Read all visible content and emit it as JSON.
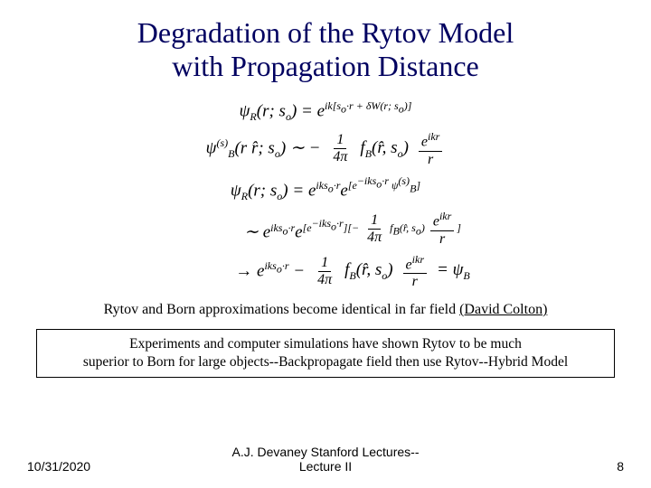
{
  "colors": {
    "title": "#000060",
    "text": "#000000",
    "background": "#ffffff",
    "box_border": "#000000"
  },
  "fonts": {
    "title_size_pt": 32,
    "body_size_pt": 19,
    "caption_size_pt": 16,
    "box_size_pt": 15.5,
    "footer_size_pt": 14,
    "title_family": "Times New Roman",
    "footer_family": "Arial"
  },
  "title": {
    "line1": "Degradation of the Rytov Model",
    "line2": "with Propagation Distance"
  },
  "equations": {
    "eq1": {
      "lhs": "ψ",
      "lhs_sub": "R",
      "lhs_args": "(r; s",
      "lhs_args_sub": "o",
      "lhs_args_close": ") = ",
      "rhs_base": "e",
      "rhs_exp": "ik[s",
      "rhs_exp_sub": "o",
      "rhs_exp2": "·r + δW(r; s",
      "rhs_exp2_sub": "o",
      "rhs_exp_close": ")]"
    },
    "eq2": {
      "lhs": "ψ",
      "lhs_sup": "(s)",
      "lhs_sub": "B",
      "lhs_args": "(r r̂; s",
      "lhs_args_sub": "o",
      "lhs_args_close": ") ∼ −",
      "frac1_num": "1",
      "frac1_den": "4π",
      "mid1": " f",
      "mid1_sub": "B",
      "mid1_args": "(r̂, s",
      "mid1_args_sub": "o",
      "mid1_close": ")",
      "frac2_num_base": "e",
      "frac2_num_exp": "ikr",
      "frac2_den": "r"
    },
    "eq3": {
      "lhs": "ψ",
      "lhs_sub": "R",
      "lhs_args": "(r; s",
      "lhs_args_sub": "o",
      "lhs_args_close": ") = ",
      "rhs1_base": "e",
      "rhs1_exp1": "iks",
      "rhs1_exp1_sub": "o",
      "rhs1_exp2": "·r",
      "rhs1_b_base": "e",
      "rhs1_b_exp_open": "[e",
      "rhs1_b_exp_inner": "−iks",
      "rhs1_b_exp_inner_sub": "o",
      "rhs1_b_exp_inner2": "·r",
      "rhs1_b_exp_close": " ψ",
      "rhs1_b_exp_close_sup": "(s)",
      "rhs1_b_exp_close_sub": "B",
      "rhs1_b_exp_end": "]"
    },
    "eq4": {
      "rel": "∼ ",
      "a_base": "e",
      "a_exp1": "iks",
      "a_exp1_sub": "o",
      "a_exp2": "·r",
      "b_base": "e",
      "b_exp_open": "[e",
      "b_exp_inner": "−iks",
      "b_exp_inner_sub": "o",
      "b_exp_inner2": "·r",
      "b_exp_close": "][−",
      "frac_num": "1",
      "frac_den": "4π",
      "tail": " f",
      "tail_sub": "B",
      "tail_args": "(r̂, s",
      "tail_args_sub": "o",
      "tail_close": ")",
      "frac2_num_base": "e",
      "frac2_num_exp": "ikr",
      "frac2_den": "r",
      "end": "]"
    },
    "eq5": {
      "rel": "→ ",
      "a_base": "e",
      "a_exp1": "iks",
      "a_exp1_sub": "o",
      "a_exp2": "·r",
      "minus": " − ",
      "frac_num": "1",
      "frac_den": "4π",
      "tail": " f",
      "tail_sub": "B",
      "tail_args": "(r̂, s",
      "tail_args_sub": "o",
      "tail_close": ")",
      "frac2_num_base": "e",
      "frac2_num_exp": "ikr",
      "frac2_den": "r",
      "eq_rhs": " = ψ",
      "eq_rhs_sub": "B"
    }
  },
  "caption": {
    "text": "Rytov and Born approximations become identical in far field ",
    "underlined": "(David Colton)"
  },
  "box": {
    "line1": "Experiments and computer simulations have shown Rytov to be much",
    "line2": "superior to Born for large objects--Backpropagate field then use Rytov--Hybrid Model"
  },
  "footer": {
    "date": "10/31/2020",
    "center_line1": "A.J. Devaney Stanford Lectures--",
    "center_line2": "Lecture II",
    "page": "8"
  }
}
